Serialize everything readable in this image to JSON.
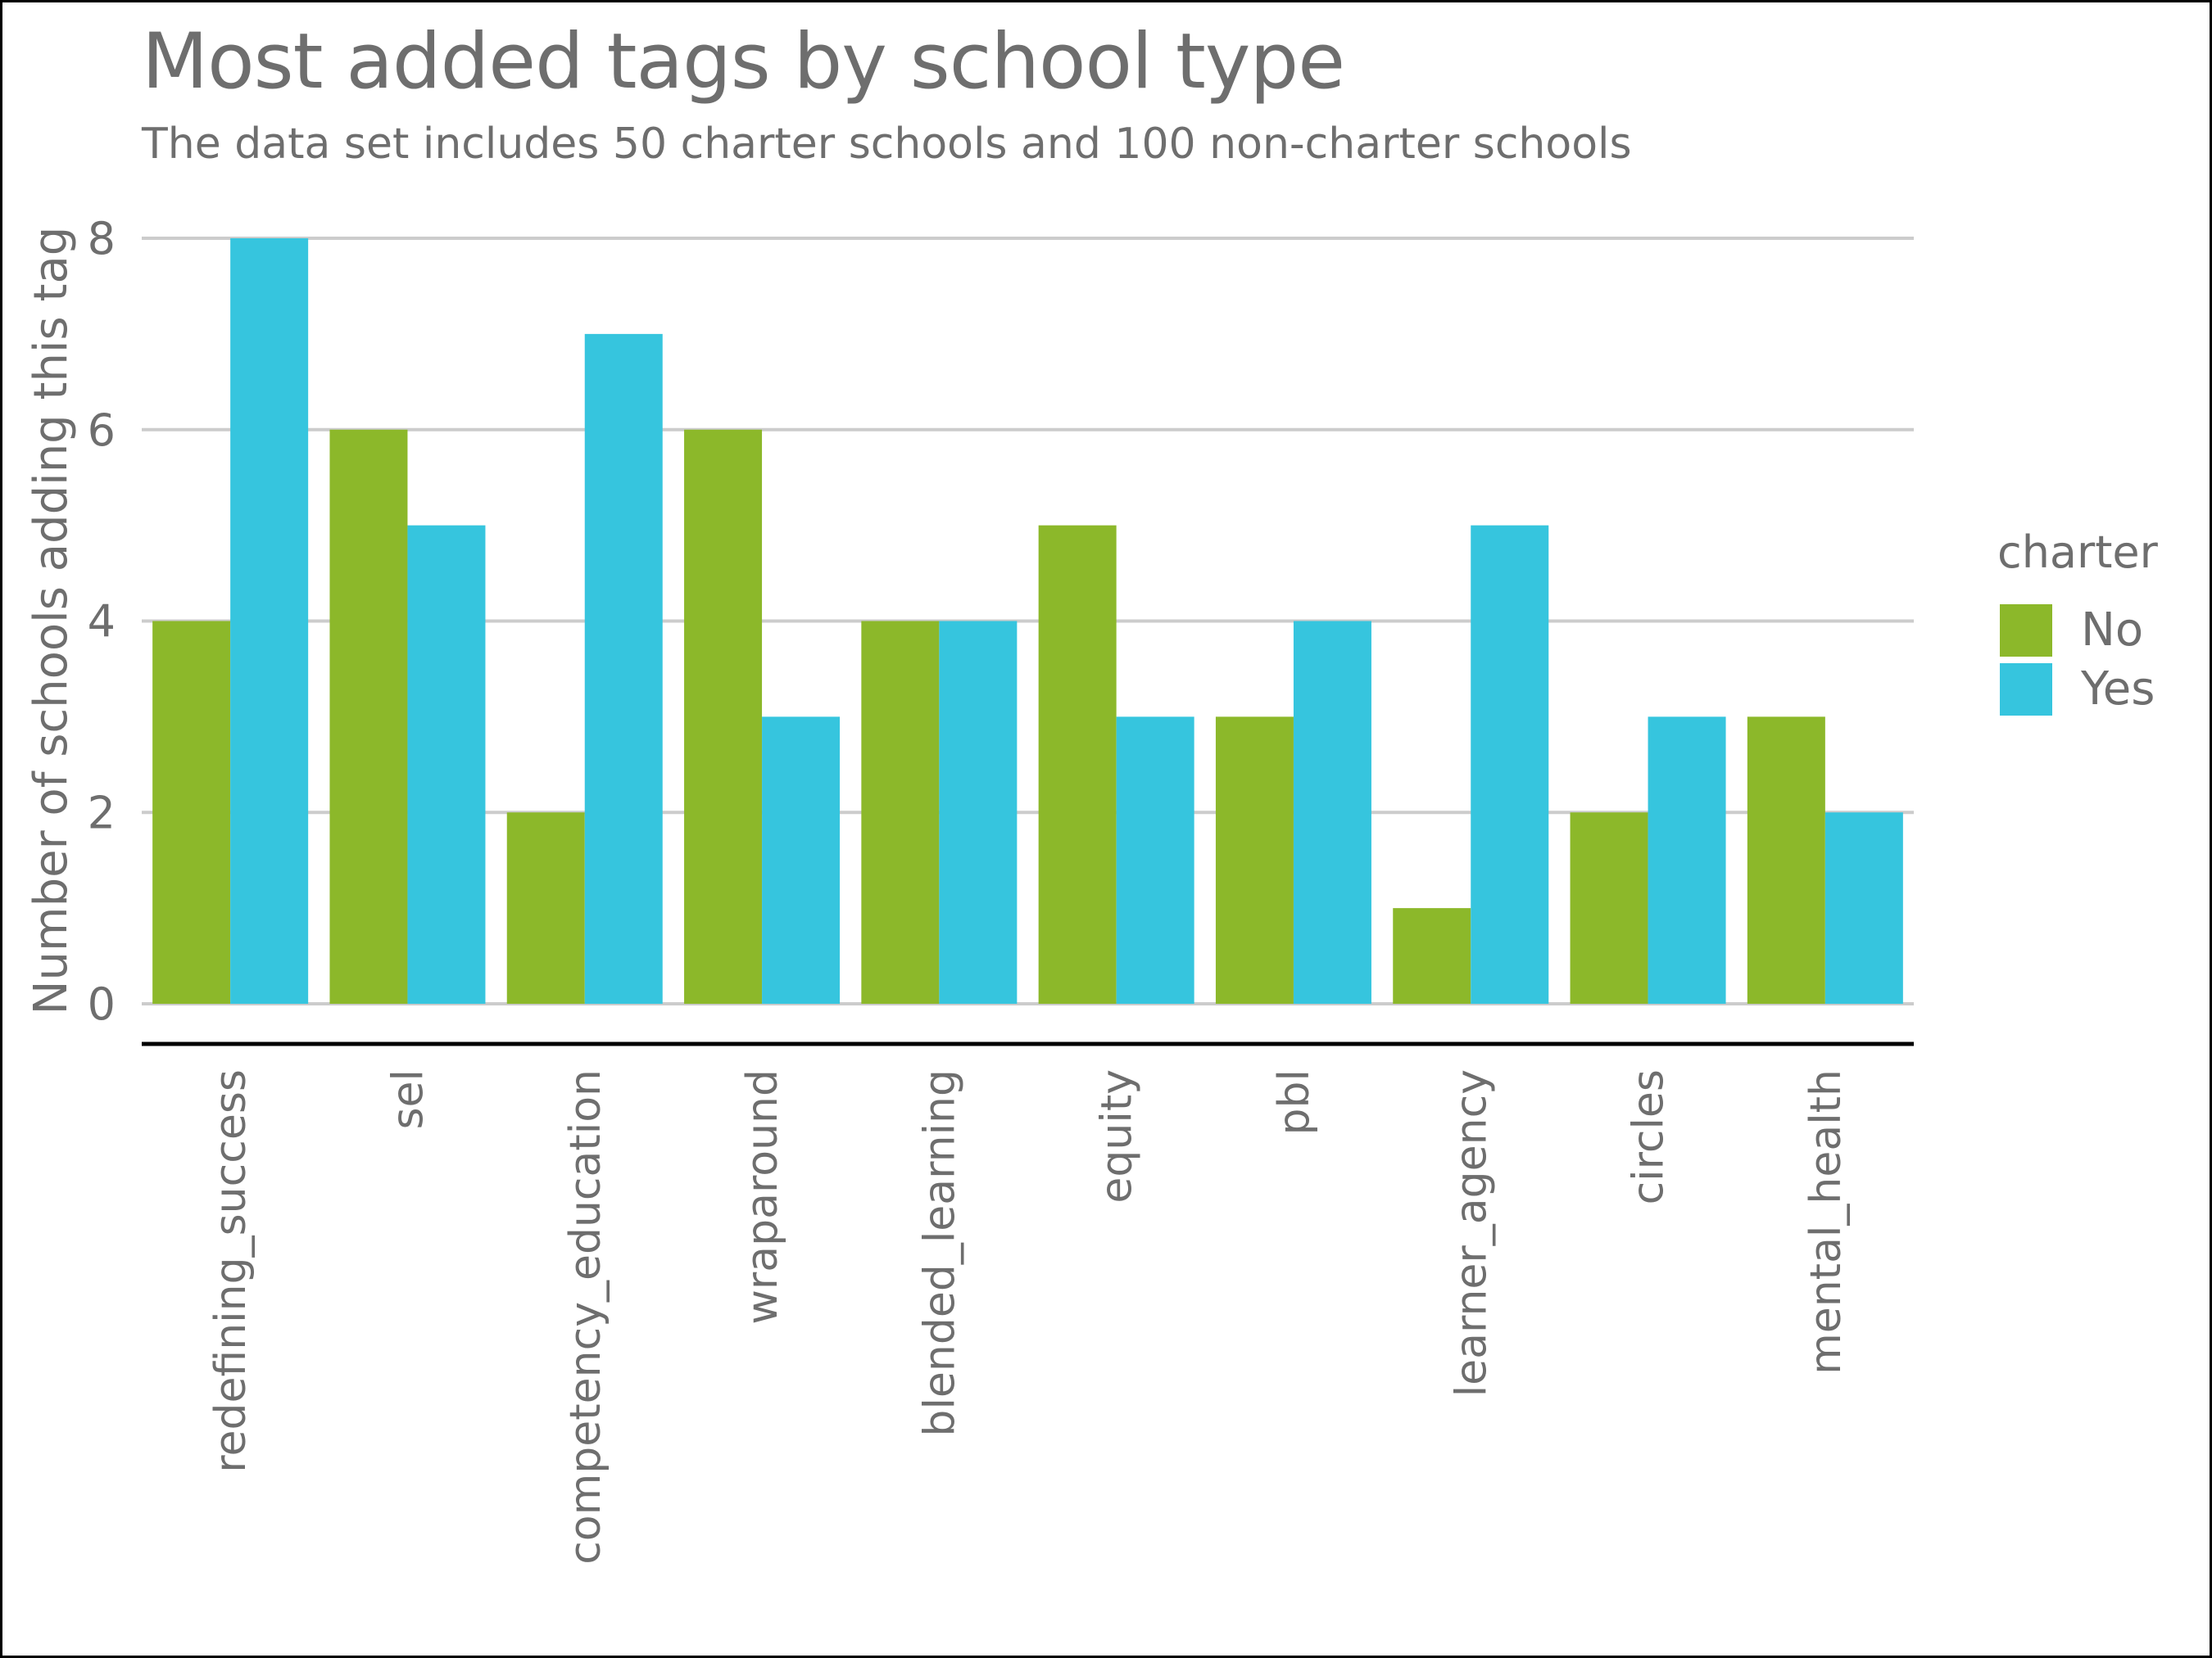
{
  "chart_data": {
    "type": "bar",
    "title": "Most added tags by school type",
    "subtitle": "The data set includes 50 charter schools and 100 non-charter schools",
    "xlabel": "",
    "ylabel": "Number of schools adding this tag",
    "ylim": [
      0,
      8
    ],
    "yticks": [
      "0",
      "2",
      "4",
      "6",
      "8"
    ],
    "grid": true,
    "legend_position": "right",
    "legend_title": "charter",
    "categories": [
      "redefining_success",
      "sel",
      "competency_education",
      "wraparound",
      "blended_learning",
      "equity",
      "pbl",
      "learner_agency",
      "circles",
      "mental_health"
    ],
    "series": [
      {
        "name": "No",
        "color": "#8cb82a",
        "values": [
          4,
          6,
          2,
          6,
          4,
          5,
          3,
          1,
          2,
          3
        ]
      },
      {
        "name": "Yes",
        "color": "#36c5de",
        "values": [
          8,
          5,
          7,
          3,
          4,
          3,
          4,
          5,
          3,
          2
        ]
      }
    ]
  }
}
